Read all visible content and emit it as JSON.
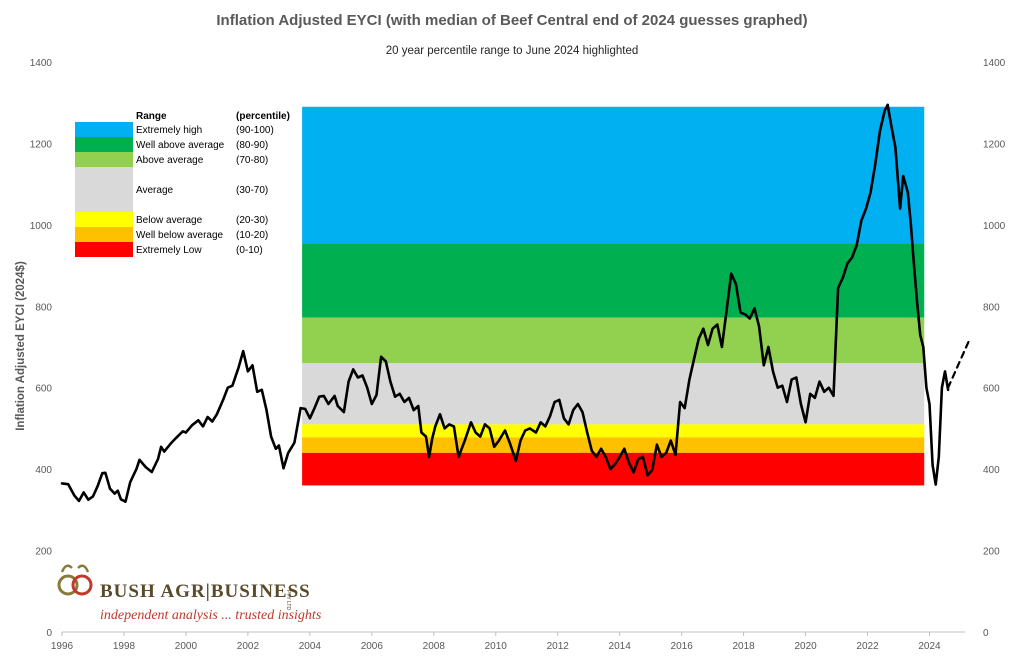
{
  "chart_data": {
    "type": "line",
    "title": "Inflation Adjusted EYCI (with median of Beef Central end of 2024 guesses graphed)",
    "subtitle": "20 year percentile range to June 2024 highlighted",
    "ylabel": "Inflation Adjusted EYCI (2024$)",
    "xlabel": "",
    "xlim": [
      1996,
      2024.5
    ],
    "ylim": [
      0,
      1400
    ],
    "x_ticks": [
      "1996",
      "1998",
      "2000",
      "2002",
      "2004",
      "2006",
      "2008",
      "2010",
      "2012",
      "2014",
      "2016",
      "2018",
      "2020",
      "2022",
      "2024"
    ],
    "y_ticks": [
      "0",
      "200",
      "400",
      "600",
      "800",
      "1000",
      "1200",
      "1400"
    ],
    "grid": false,
    "secondary_y_axis": true,
    "legend_position": "top-left",
    "percentile_bands": {
      "x_range": [
        2003.75,
        2023.83
      ],
      "bands": [
        {
          "name": "Extremely high",
          "percentile": "(90-100)",
          "from": 955,
          "to": 1290,
          "color": "#00B0F0"
        },
        {
          "name": "Well above average",
          "percentile": "(80-90)",
          "from": 772,
          "to": 955,
          "color": "#00B050"
        },
        {
          "name": "Above average",
          "percentile": "(70-80)",
          "from": 660,
          "to": 772,
          "color": "#92D050"
        },
        {
          "name": "Average",
          "percentile": "(30-70)",
          "from": 510,
          "to": 660,
          "color": "#D9D9D9"
        },
        {
          "name": "Below average",
          "percentile": "(20-30)",
          "from": 478,
          "to": 510,
          "color": "#FFFF00"
        },
        {
          "name": "Well below average",
          "percentile": "(10-20)",
          "from": 440,
          "to": 478,
          "color": "#FFC000"
        },
        {
          "name": "Extremely Low",
          "percentile": "(0-10)",
          "from": 360,
          "to": 440,
          "color": "#FF0000"
        }
      ]
    },
    "legend": {
      "header_range": "Range",
      "header_percentile": "(percentile)"
    },
    "series": [
      {
        "name": "Inflation Adjusted EYCI",
        "style": "solid",
        "color": "#000000",
        "points": [
          [
            1996.0,
            365
          ],
          [
            1996.2,
            363
          ],
          [
            1996.4,
            335
          ],
          [
            1996.55,
            322
          ],
          [
            1996.7,
            343
          ],
          [
            1996.85,
            325
          ],
          [
            1997.0,
            333
          ],
          [
            1997.15,
            358
          ],
          [
            1997.3,
            390
          ],
          [
            1997.4,
            391
          ],
          [
            1997.55,
            352
          ],
          [
            1997.7,
            340
          ],
          [
            1997.8,
            347
          ],
          [
            1997.9,
            326
          ],
          [
            1998.05,
            320
          ],
          [
            1998.2,
            368
          ],
          [
            1998.4,
            400
          ],
          [
            1998.5,
            423
          ],
          [
            1998.7,
            405
          ],
          [
            1998.9,
            393
          ],
          [
            1999.1,
            425
          ],
          [
            1999.2,
            455
          ],
          [
            1999.3,
            443
          ],
          [
            1999.5,
            462
          ],
          [
            1999.7,
            478
          ],
          [
            1999.9,
            493
          ],
          [
            2000.0,
            490
          ],
          [
            2000.2,
            508
          ],
          [
            2000.4,
            520
          ],
          [
            2000.55,
            505
          ],
          [
            2000.7,
            528
          ],
          [
            2000.85,
            517
          ],
          [
            2001.0,
            535
          ],
          [
            2001.2,
            570
          ],
          [
            2001.35,
            600
          ],
          [
            2001.5,
            605
          ],
          [
            2001.7,
            650
          ],
          [
            2001.85,
            690
          ],
          [
            2002.0,
            640
          ],
          [
            2002.15,
            655
          ],
          [
            2002.3,
            590
          ],
          [
            2002.45,
            595
          ],
          [
            2002.6,
            545
          ],
          [
            2002.75,
            480
          ],
          [
            2002.9,
            450
          ],
          [
            2003.0,
            458
          ],
          [
            2003.15,
            402
          ],
          [
            2003.3,
            440
          ],
          [
            2003.5,
            465
          ],
          [
            2003.7,
            550
          ],
          [
            2003.85,
            548
          ],
          [
            2004.0,
            525
          ],
          [
            2004.15,
            550
          ],
          [
            2004.3,
            578
          ],
          [
            2004.45,
            580
          ],
          [
            2004.6,
            560
          ],
          [
            2004.8,
            580
          ],
          [
            2004.9,
            555
          ],
          [
            2005.1,
            540
          ],
          [
            2005.25,
            615
          ],
          [
            2005.4,
            645
          ],
          [
            2005.55,
            625
          ],
          [
            2005.7,
            630
          ],
          [
            2005.85,
            600
          ],
          [
            2006.0,
            560
          ],
          [
            2006.15,
            582
          ],
          [
            2006.3,
            676
          ],
          [
            2006.45,
            665
          ],
          [
            2006.6,
            615
          ],
          [
            2006.75,
            578
          ],
          [
            2006.9,
            585
          ],
          [
            2007.05,
            565
          ],
          [
            2007.2,
            575
          ],
          [
            2007.35,
            545
          ],
          [
            2007.5,
            555
          ],
          [
            2007.6,
            490
          ],
          [
            2007.75,
            480
          ],
          [
            2007.85,
            430
          ],
          [
            2007.95,
            475
          ],
          [
            2008.05,
            505
          ],
          [
            2008.2,
            535
          ],
          [
            2008.35,
            500
          ],
          [
            2008.5,
            510
          ],
          [
            2008.65,
            505
          ],
          [
            2008.8,
            430
          ],
          [
            2009.0,
            470
          ],
          [
            2009.2,
            515
          ],
          [
            2009.35,
            490
          ],
          [
            2009.5,
            480
          ],
          [
            2009.65,
            510
          ],
          [
            2009.8,
            500
          ],
          [
            2009.95,
            455
          ],
          [
            2010.1,
            470
          ],
          [
            2010.3,
            495
          ],
          [
            2010.45,
            465
          ],
          [
            2010.65,
            420
          ],
          [
            2010.8,
            470
          ],
          [
            2010.95,
            495
          ],
          [
            2011.1,
            500
          ],
          [
            2011.3,
            490
          ],
          [
            2011.45,
            515
          ],
          [
            2011.6,
            505
          ],
          [
            2011.75,
            530
          ],
          [
            2011.9,
            565
          ],
          [
            2012.05,
            570
          ],
          [
            2012.2,
            525
          ],
          [
            2012.35,
            510
          ],
          [
            2012.5,
            545
          ],
          [
            2012.65,
            560
          ],
          [
            2012.8,
            540
          ],
          [
            2012.95,
            490
          ],
          [
            2013.1,
            445
          ],
          [
            2013.25,
            430
          ],
          [
            2013.4,
            450
          ],
          [
            2013.55,
            430
          ],
          [
            2013.7,
            400
          ],
          [
            2013.85,
            412
          ],
          [
            2014.0,
            430
          ],
          [
            2014.15,
            450
          ],
          [
            2014.3,
            415
          ],
          [
            2014.45,
            392
          ],
          [
            2014.6,
            425
          ],
          [
            2014.75,
            430
          ],
          [
            2014.9,
            385
          ],
          [
            2015.05,
            398
          ],
          [
            2015.2,
            460
          ],
          [
            2015.35,
            430
          ],
          [
            2015.5,
            440
          ],
          [
            2015.65,
            470
          ],
          [
            2015.8,
            435
          ],
          [
            2015.95,
            565
          ],
          [
            2016.1,
            550
          ],
          [
            2016.25,
            620
          ],
          [
            2016.4,
            670
          ],
          [
            2016.55,
            720
          ],
          [
            2016.7,
            745
          ],
          [
            2016.85,
            705
          ],
          [
            2017.0,
            745
          ],
          [
            2017.15,
            755
          ],
          [
            2017.3,
            700
          ],
          [
            2017.45,
            790
          ],
          [
            2017.6,
            880
          ],
          [
            2017.75,
            855
          ],
          [
            2017.9,
            785
          ],
          [
            2018.05,
            780
          ],
          [
            2018.2,
            770
          ],
          [
            2018.35,
            795
          ],
          [
            2018.5,
            750
          ],
          [
            2018.65,
            655
          ],
          [
            2018.8,
            700
          ],
          [
            2018.95,
            640
          ],
          [
            2019.1,
            600
          ],
          [
            2019.25,
            605
          ],
          [
            2019.4,
            565
          ],
          [
            2019.55,
            620
          ],
          [
            2019.7,
            625
          ],
          [
            2019.85,
            560
          ],
          [
            2020.0,
            515
          ],
          [
            2020.15,
            585
          ],
          [
            2020.3,
            575
          ],
          [
            2020.45,
            615
          ],
          [
            2020.6,
            590
          ],
          [
            2020.75,
            600
          ],
          [
            2020.9,
            580
          ],
          [
            2021.05,
            845
          ],
          [
            2021.2,
            870
          ],
          [
            2021.35,
            905
          ],
          [
            2021.5,
            920
          ],
          [
            2021.65,
            950
          ],
          [
            2021.8,
            1010
          ],
          [
            2021.95,
            1040
          ],
          [
            2022.1,
            1080
          ],
          [
            2022.25,
            1150
          ],
          [
            2022.4,
            1230
          ],
          [
            2022.55,
            1280
          ],
          [
            2022.65,
            1295
          ],
          [
            2022.75,
            1250
          ],
          [
            2022.9,
            1190
          ],
          [
            2023.05,
            1040
          ],
          [
            2023.15,
            1120
          ],
          [
            2023.3,
            1080
          ],
          [
            2023.4,
            1000
          ],
          [
            2023.5,
            900
          ],
          [
            2023.6,
            810
          ],
          [
            2023.7,
            730
          ],
          [
            2023.8,
            700
          ],
          [
            2023.9,
            600
          ],
          [
            2024.0,
            560
          ],
          [
            2024.1,
            410
          ],
          [
            2024.2,
            362
          ],
          [
            2024.3,
            430
          ],
          [
            2024.4,
            600
          ],
          [
            2024.5,
            640
          ],
          [
            2024.6,
            595
          ]
        ]
      },
      {
        "name": "Median of Beef Central end of 2024 guesses",
        "style": "dashed",
        "color": "#000000",
        "points": [
          [
            2024.6,
            600
          ],
          [
            2025.3,
            720
          ]
        ]
      }
    ]
  }
}
